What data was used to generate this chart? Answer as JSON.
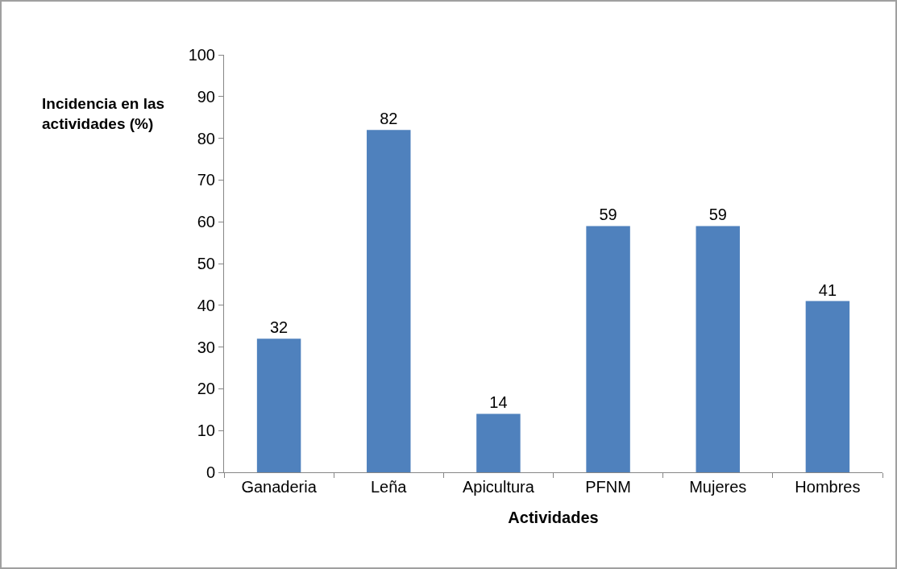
{
  "chart_data": {
    "type": "bar",
    "xlabel": "Actividades",
    "ylabel": "Incidencia en las actividades (%)",
    "categories": [
      "Ganaderia",
      "Leña",
      "Apicultura",
      "PFNM",
      "Mujeres",
      "Hombres"
    ],
    "values": [
      32,
      82,
      14,
      59,
      59,
      41
    ],
    "color": "#4f81bd",
    "ylim": [
      0,
      100
    ],
    "yticks": [
      0,
      10,
      20,
      30,
      40,
      50,
      60,
      70,
      80,
      90,
      100
    ],
    "grid": false,
    "legend": false,
    "data_labels": true
  }
}
